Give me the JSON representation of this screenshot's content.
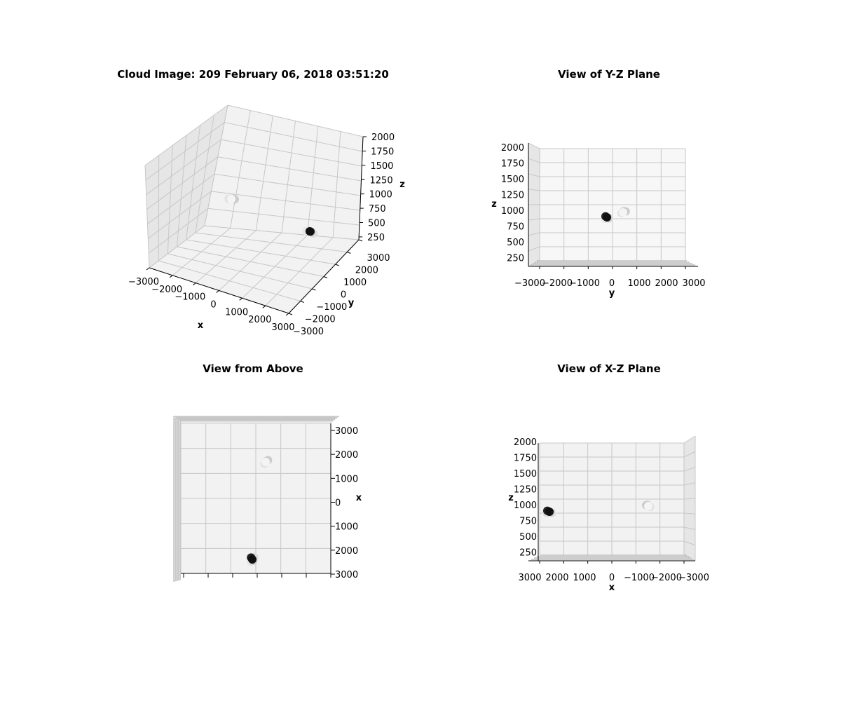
{
  "colors": {
    "pane": "#f2f2f2",
    "pane_dark": "#e6e6e6",
    "grid": "#c7c7c7",
    "edge": "#a8a8a8"
  },
  "chart_data": [
    {
      "id": "iso",
      "type": "scatter",
      "projection": "3d",
      "title": "Cloud Image: 209 February 06, 2018 03:51:20",
      "xlabel": "x",
      "ylabel": "y",
      "zlabel": "z",
      "xticks": [
        "−3000",
        "−2000",
        "−1000",
        "0",
        "1000",
        "2000",
        "3000"
      ],
      "yticks": [
        "3000",
        "2000",
        "1000",
        "0",
        "−1000",
        "−2000",
        "−3000"
      ],
      "zticks": [
        "2000",
        "1750",
        "1500",
        "1250",
        "1000",
        "750",
        "500",
        "250"
      ],
      "xlim": [
        -3000,
        3000
      ],
      "ylim": [
        -3000,
        3000
      ],
      "zlim": [
        200,
        2000
      ]
    },
    {
      "id": "yz",
      "type": "scatter",
      "projection": "3d",
      "title": "View of Y-Z Plane",
      "xlabel": "y",
      "zlabel": "z",
      "xticks": [
        "−3000",
        "−2000",
        "−1000",
        "0",
        "1000",
        "2000",
        "3000"
      ],
      "zticks": [
        "2000",
        "1750",
        "1500",
        "1250",
        "1000",
        "750",
        "500",
        "250"
      ]
    },
    {
      "id": "top",
      "type": "scatter",
      "projection": "3d",
      "title": "View from Above",
      "ylabel": "x",
      "yticks": [
        "3000",
        "2000",
        "1000",
        "0",
        "1000",
        "2000",
        "3000"
      ]
    },
    {
      "id": "xz",
      "type": "scatter",
      "projection": "3d",
      "title": "View of X-Z Plane",
      "xlabel": "x",
      "zlabel": "z",
      "xticks": [
        "3000",
        "2000",
        "1000",
        "0",
        "−1000",
        "−2000",
        "−3000"
      ],
      "zticks": [
        "2000",
        "1750",
        "1500",
        "1250",
        "1000",
        "750",
        "500",
        "250"
      ]
    }
  ],
  "clouds": [
    {
      "name": "dark",
      "x": 1600,
      "y": 0,
      "z": 900,
      "points": [
        {
          "dx": 0,
          "dy": 0,
          "dz": 0,
          "shade": "#111111"
        },
        {
          "dx": 120,
          "dy": -80,
          "dz": 40,
          "shade": "#222222"
        },
        {
          "dx": -90,
          "dy": 60,
          "dz": -30,
          "shade": "#cfcfcf"
        },
        {
          "dx": 150,
          "dy": 120,
          "dz": -50,
          "shade": "#dddddd"
        },
        {
          "dx": -160,
          "dy": -100,
          "dz": -60,
          "shade": "#e8e8e8"
        }
      ]
    },
    {
      "name": "light",
      "x": -1500,
      "y": 400,
      "z": 1000,
      "points": [
        {
          "dx": 0,
          "dy": 0,
          "dz": 0,
          "shade": "#f4f4f4"
        },
        {
          "dx": 120,
          "dy": 150,
          "dz": 40,
          "shade": "#cccccc"
        },
        {
          "dx": -110,
          "dy": -80,
          "dz": -30,
          "shade": "#e2e2e2"
        },
        {
          "dx": 60,
          "dy": 40,
          "dz": 60,
          "shade": "#d6d6d6"
        }
      ]
    }
  ]
}
